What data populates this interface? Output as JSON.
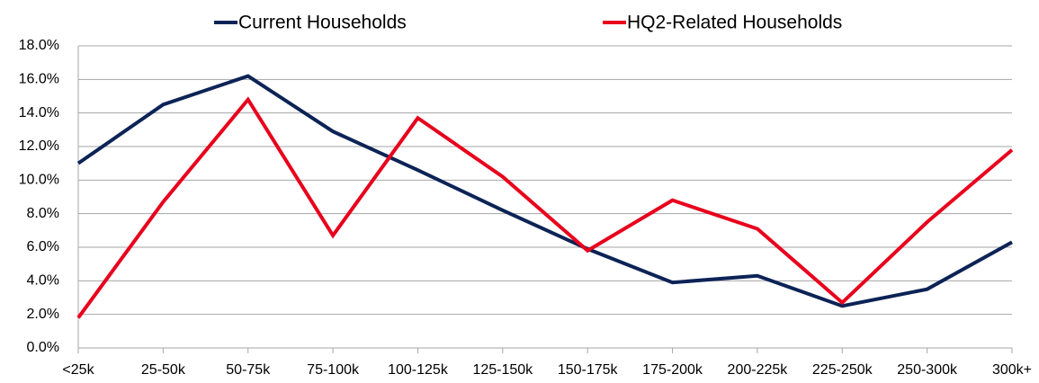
{
  "chart_data": {
    "type": "line",
    "categories": [
      "<25k",
      "25-50k",
      "50-75k",
      "75-100k",
      "100-125k",
      "125-150k",
      "150-175k",
      "175-200k",
      "200-225k",
      "225-250k",
      "250-300k",
      "300k+"
    ],
    "series": [
      {
        "name": "Current Households",
        "color": "#0c2356",
        "values": [
          11.0,
          14.5,
          16.2,
          12.9,
          10.6,
          8.2,
          5.9,
          3.9,
          4.3,
          2.5,
          3.5,
          6.3
        ]
      },
      {
        "name": "HQ2-Related Households",
        "color": "#e8001c",
        "values": [
          1.8,
          8.7,
          14.8,
          6.7,
          13.7,
          10.2,
          5.8,
          8.8,
          7.1,
          2.7,
          7.5,
          11.8
        ]
      }
    ],
    "ylim": [
      0,
      18
    ],
    "yticks": [
      {
        "value": 0,
        "label": "0.0%"
      },
      {
        "value": 2,
        "label": "2.0%"
      },
      {
        "value": 4,
        "label": "4.0%"
      },
      {
        "value": 6,
        "label": "6.0%"
      },
      {
        "value": 8,
        "label": "8.0%"
      },
      {
        "value": 10,
        "label": "10.0%"
      },
      {
        "value": 12,
        "label": "12.0%"
      },
      {
        "value": 14,
        "label": "14.0%"
      },
      {
        "value": 16,
        "label": "16.0%"
      },
      {
        "value": 18,
        "label": "18.0%"
      }
    ],
    "grid": true,
    "legend": "top"
  }
}
